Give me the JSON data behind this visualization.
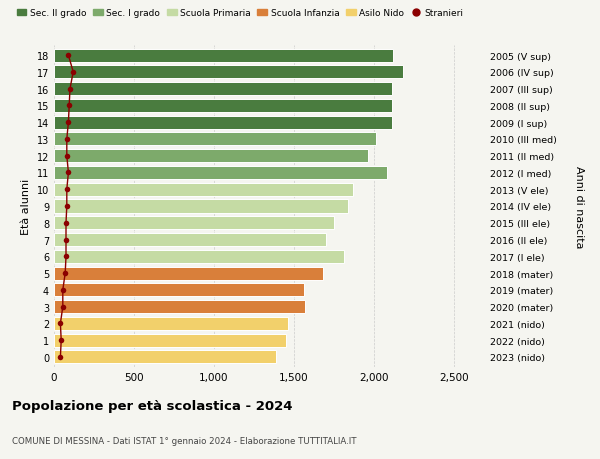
{
  "ages": [
    18,
    17,
    16,
    15,
    14,
    13,
    12,
    11,
    10,
    9,
    8,
    7,
    6,
    5,
    4,
    3,
    2,
    1,
    0
  ],
  "years": [
    "2005 (V sup)",
    "2006 (IV sup)",
    "2007 (III sup)",
    "2008 (II sup)",
    "2009 (I sup)",
    "2010 (III med)",
    "2011 (II med)",
    "2012 (I med)",
    "2013 (V ele)",
    "2014 (IV ele)",
    "2015 (III ele)",
    "2016 (II ele)",
    "2017 (I ele)",
    "2018 (mater)",
    "2019 (mater)",
    "2020 (mater)",
    "2021 (nido)",
    "2022 (nido)",
    "2023 (nido)"
  ],
  "values": [
    2120,
    2180,
    2110,
    2110,
    2110,
    2010,
    1960,
    2080,
    1870,
    1840,
    1750,
    1700,
    1810,
    1680,
    1560,
    1570,
    1460,
    1450,
    1390
  ],
  "stranieri": [
    90,
    120,
    100,
    95,
    90,
    80,
    80,
    90,
    80,
    80,
    75,
    75,
    75,
    70,
    55,
    55,
    40,
    45,
    40
  ],
  "bar_colors": [
    "#4a7c3f",
    "#4a7c3f",
    "#4a7c3f",
    "#4a7c3f",
    "#4a7c3f",
    "#7daa6b",
    "#7daa6b",
    "#7daa6b",
    "#c5dba4",
    "#c5dba4",
    "#c5dba4",
    "#c5dba4",
    "#c5dba4",
    "#d97f3a",
    "#d97f3a",
    "#d97f3a",
    "#f2d06b",
    "#f2d06b",
    "#f2d06b"
  ],
  "stranieri_color": "#8b0000",
  "title": "Popolazione per età scolastica - 2024",
  "subtitle": "COMUNE DI MESSINA - Dati ISTAT 1° gennaio 2024 - Elaborazione TUTTITALIA.IT",
  "ylabel_left": "Età alunni",
  "ylabel_right": "Anni di nascita",
  "xlim": [
    0,
    2700
  ],
  "background_color": "#f5f5f0",
  "legend_labels": [
    "Sec. II grado",
    "Sec. I grado",
    "Scuola Primaria",
    "Scuola Infanzia",
    "Asilo Nido",
    "Stranieri"
  ],
  "legend_colors": [
    "#4a7c3f",
    "#7daa6b",
    "#c5dba4",
    "#d97f3a",
    "#f2d06b",
    "#8b0000"
  ],
  "xticks": [
    0,
    500,
    1000,
    1500,
    2000,
    2500
  ],
  "xtick_labels": [
    "0",
    "500",
    "1,000",
    "1,500",
    "2,000",
    "2,500"
  ]
}
